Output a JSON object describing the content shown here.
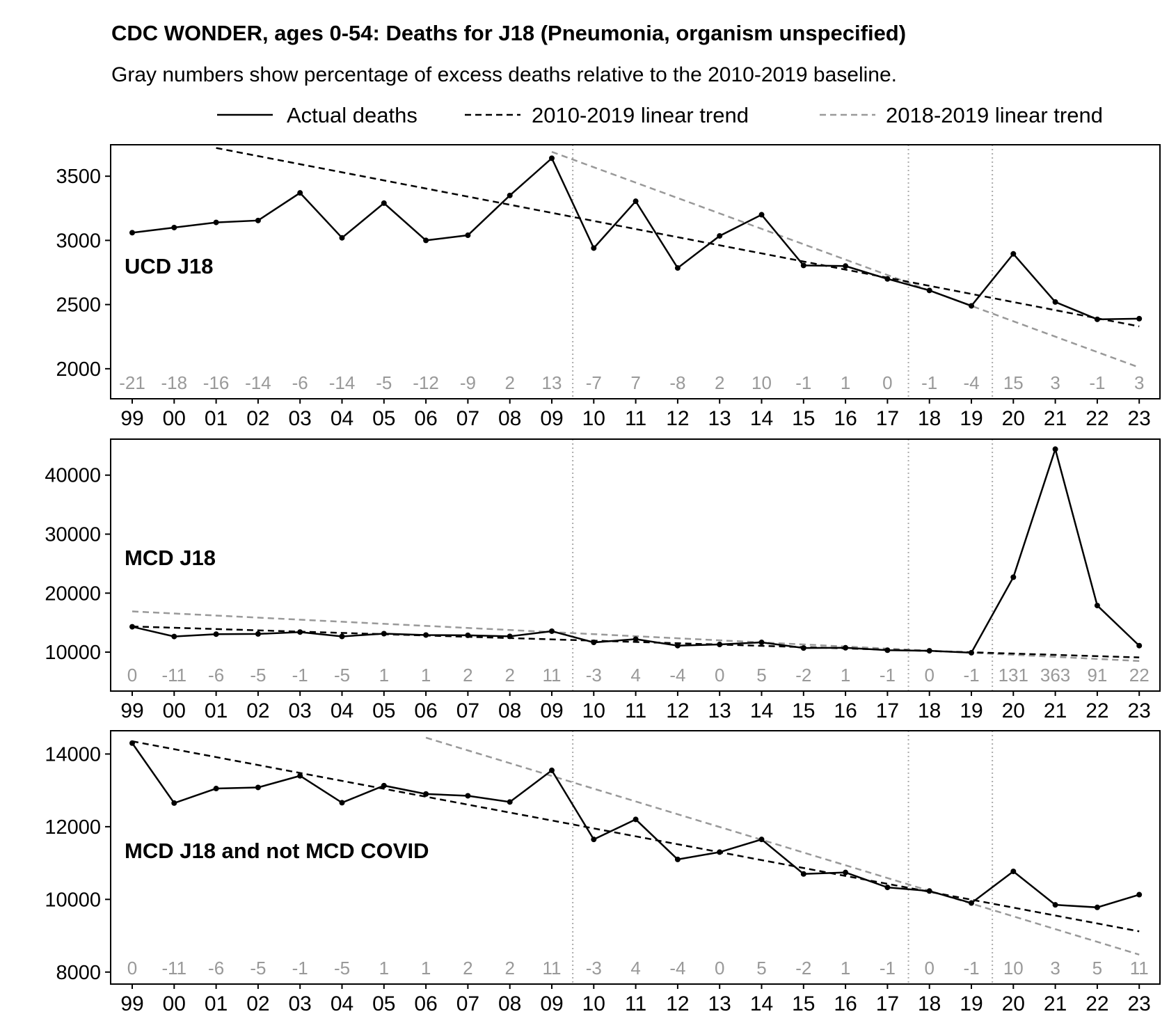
{
  "title": "CDC WONDER, ages 0-54: Deaths for J18 (Pneumonia, organism unspecified)",
  "subtitle": "Gray numbers show percentage of excess deaths relative to the 2010-2019 baseline.",
  "legend": [
    {
      "label": "Actual deaths",
      "style": "solid",
      "color": "#000000"
    },
    {
      "label": "2010-2019 linear trend",
      "style": "dashed",
      "color": "#000000"
    },
    {
      "label": "2018-2019 linear trend",
      "style": "dashed",
      "color": "#999999"
    }
  ],
  "chart_data": [
    {
      "type": "line",
      "panel_label": "UCD J18",
      "categories": [
        "99",
        "00",
        "01",
        "02",
        "03",
        "04",
        "05",
        "06",
        "07",
        "08",
        "09",
        "10",
        "11",
        "12",
        "13",
        "14",
        "15",
        "16",
        "17",
        "18",
        "19",
        "20",
        "21",
        "22",
        "23"
      ],
      "series": [
        {
          "name": "Actual deaths",
          "values": [
            3060,
            3100,
            3140,
            3155,
            3370,
            3020,
            3290,
            3000,
            3040,
            3350,
            3640,
            2940,
            3305,
            2785,
            3035,
            3200,
            2805,
            2800,
            2700,
            2610,
            2490,
            2895,
            2520,
            2385,
            2390
          ]
        },
        {
          "name": "2010-2019 linear trend",
          "x_range": [
            "01",
            "23"
          ],
          "values_at_ends": [
            3720,
            2330
          ]
        },
        {
          "name": "2018-2019 linear trend",
          "x_range": [
            "09",
            "23"
          ],
          "values_at_ends": [
            3690,
            2010
          ]
        }
      ],
      "excess_percent": [
        "-21",
        "-18",
        "-16",
        "-14",
        "-6",
        "-14",
        "-5",
        "-12",
        "-9",
        "2",
        "13",
        "-7",
        "7",
        "-8",
        "2",
        "10",
        "-1",
        "1",
        "0",
        "-1",
        "-4",
        "15",
        "3",
        "-1",
        "3"
      ],
      "yticks": [
        2000,
        2500,
        3000,
        3500
      ],
      "ylim": [
        1766,
        3745
      ],
      "vlines_between": [
        [
          "09",
          "10"
        ],
        [
          "17",
          "18"
        ],
        [
          "19",
          "20"
        ]
      ]
    },
    {
      "type": "line",
      "panel_label": "MCD J18",
      "categories": [
        "99",
        "00",
        "01",
        "02",
        "03",
        "04",
        "05",
        "06",
        "07",
        "08",
        "09",
        "10",
        "11",
        "12",
        "13",
        "14",
        "15",
        "16",
        "17",
        "18",
        "19",
        "20",
        "21",
        "22",
        "23"
      ],
      "series": [
        {
          "name": "Actual deaths",
          "values": [
            14300,
            12650,
            13050,
            13080,
            13400,
            12660,
            13130,
            12900,
            12850,
            12680,
            13550,
            11650,
            12200,
            11100,
            11300,
            11650,
            10700,
            10740,
            10330,
            10230,
            9900,
            22700,
            44400,
            17900,
            11100
          ]
        },
        {
          "name": "2010-2019 linear trend",
          "x_range": [
            "99",
            "23"
          ],
          "values_at_ends": [
            14350,
            9100
          ]
        },
        {
          "name": "2018-2019 linear trend",
          "x_range": [
            "99",
            "23"
          ],
          "values_at_ends": [
            16900,
            8500
          ]
        }
      ],
      "excess_percent": [
        "0",
        "-11",
        "-6",
        "-5",
        "-1",
        "-5",
        "1",
        "1",
        "2",
        "2",
        "11",
        "-3",
        "4",
        "-4",
        "0",
        "5",
        "-2",
        "1",
        "-1",
        "0",
        "-1",
        "131",
        "363",
        "91",
        "22"
      ],
      "yticks": [
        10000,
        20000,
        30000,
        40000
      ],
      "ylim": [
        3400,
        46100
      ],
      "vlines_between": [
        [
          "09",
          "10"
        ],
        [
          "17",
          "18"
        ],
        [
          "19",
          "20"
        ]
      ]
    },
    {
      "type": "line",
      "panel_label": "MCD J18 and not MCD COVID",
      "categories": [
        "99",
        "00",
        "01",
        "02",
        "03",
        "04",
        "05",
        "06",
        "07",
        "08",
        "09",
        "10",
        "11",
        "12",
        "13",
        "14",
        "15",
        "16",
        "17",
        "18",
        "19",
        "20",
        "21",
        "22",
        "23"
      ],
      "series": [
        {
          "name": "Actual deaths",
          "values": [
            14300,
            12650,
            13050,
            13080,
            13400,
            12660,
            13130,
            12900,
            12850,
            12680,
            13550,
            11650,
            12200,
            11100,
            11300,
            11650,
            10700,
            10740,
            10330,
            10230,
            9900,
            10770,
            9850,
            9780,
            10130
          ]
        },
        {
          "name": "2010-2019 linear trend",
          "x_range": [
            "99",
            "23"
          ],
          "values_at_ends": [
            14350,
            9120
          ]
        },
        {
          "name": "2018-2019 linear trend",
          "x_range": [
            "06",
            "23"
          ],
          "values_at_ends": [
            14450,
            8480
          ]
        }
      ],
      "excess_percent": [
        "0",
        "-11",
        "-6",
        "-5",
        "-1",
        "-5",
        "1",
        "1",
        "2",
        "2",
        "11",
        "-3",
        "4",
        "-4",
        "0",
        "5",
        "-2",
        "1",
        "-1",
        "0",
        "-1",
        "10",
        "3",
        "5",
        "11"
      ],
      "yticks": [
        8000,
        10000,
        12000,
        14000
      ],
      "ylim": [
        7670,
        14640
      ],
      "vlines_between": [
        [
          "09",
          "10"
        ],
        [
          "17",
          "18"
        ],
        [
          "19",
          "20"
        ]
      ]
    }
  ]
}
